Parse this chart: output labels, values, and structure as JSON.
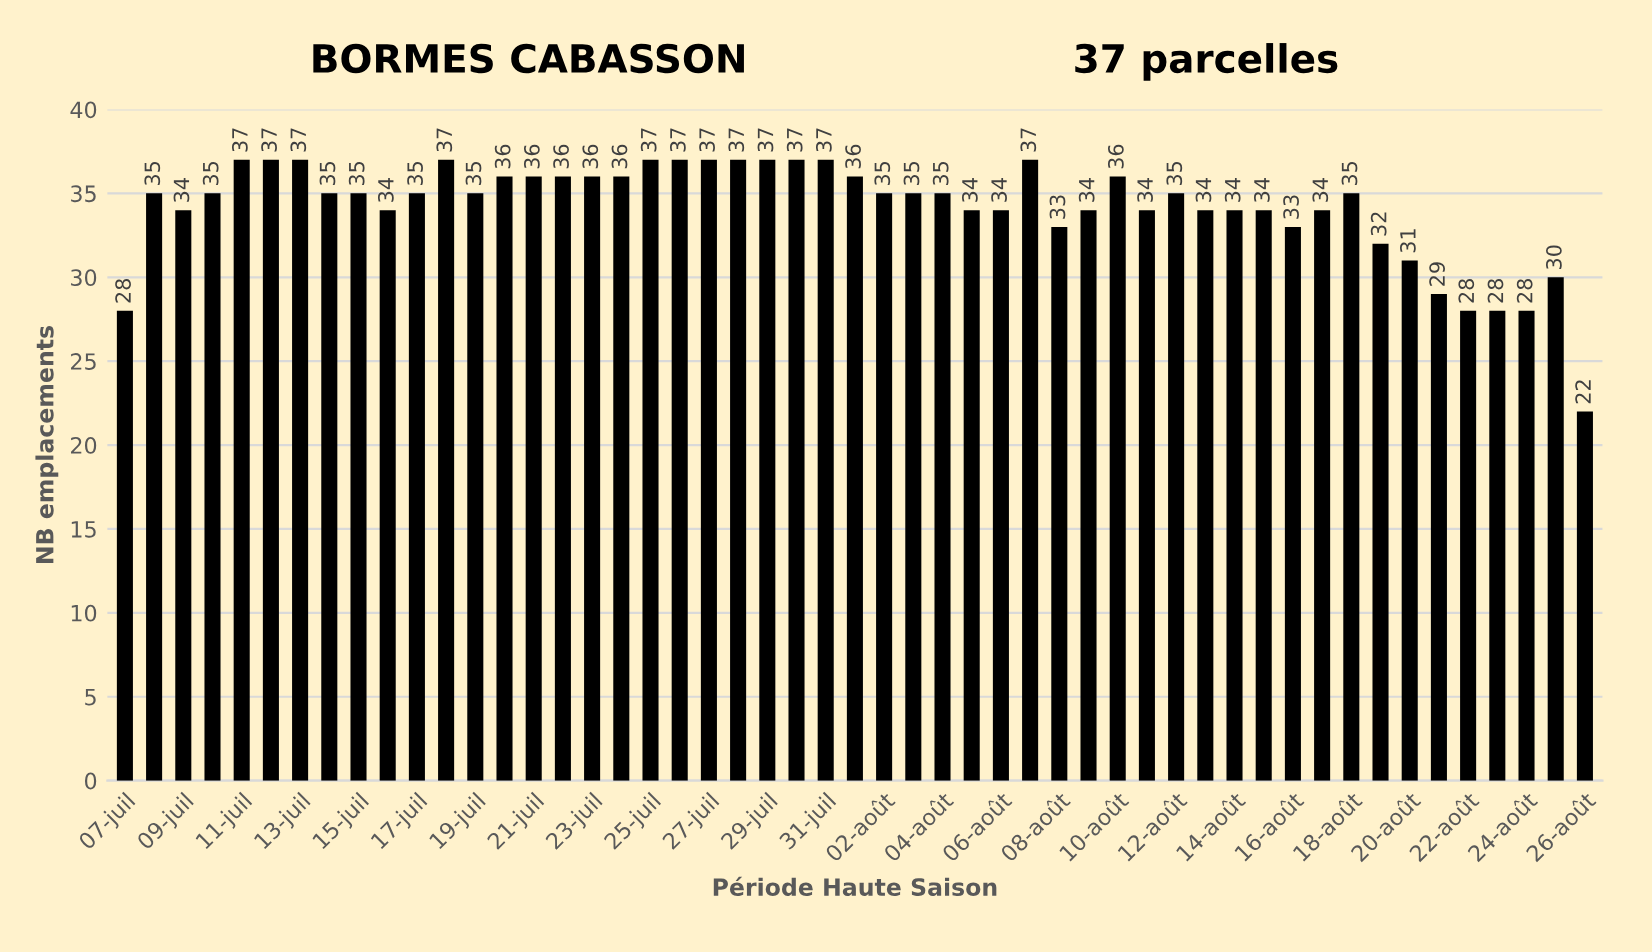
{
  "chart_data": {
    "type": "bar",
    "title": "BORMES CABASSON",
    "subtitle": "37 parcelles",
    "xlabel": "Période Haute Saison",
    "ylabel": "NB emplacements",
    "categories": [
      "07-juil",
      null,
      "09-juil",
      null,
      "11-juil",
      null,
      "13-juil",
      null,
      "15-juil",
      null,
      "17-juil",
      null,
      "19-juil",
      null,
      "21-juil",
      null,
      "23-juil",
      null,
      "25-juil",
      null,
      "27-juil",
      null,
      "29-juil",
      null,
      "31-juil",
      null,
      "02-août",
      null,
      "04-août",
      null,
      "06-août",
      null,
      "08-août",
      null,
      "10-août",
      null,
      "12-août",
      null,
      "14-août",
      null,
      "16-août",
      null,
      "18-août",
      null,
      "20-août",
      null,
      "22-août",
      null,
      "24-août",
      null,
      "26-août"
    ],
    "values": [
      28,
      35,
      34,
      35,
      37,
      37,
      37,
      35,
      35,
      34,
      35,
      37,
      35,
      36,
      36,
      36,
      36,
      36,
      37,
      37,
      37,
      37,
      37,
      37,
      37,
      36,
      35,
      35,
      35,
      34,
      34,
      37,
      33,
      34,
      36,
      34,
      35,
      34,
      34,
      34,
      33,
      34,
      35,
      32,
      31,
      29,
      28,
      28,
      28,
      30,
      22
    ],
    "color": "#000000",
    "ylim": [
      0,
      40
    ],
    "yticks": [
      0,
      5,
      10,
      15,
      20,
      25,
      30,
      35,
      40
    ],
    "grid": "y",
    "data_labels": true
  }
}
